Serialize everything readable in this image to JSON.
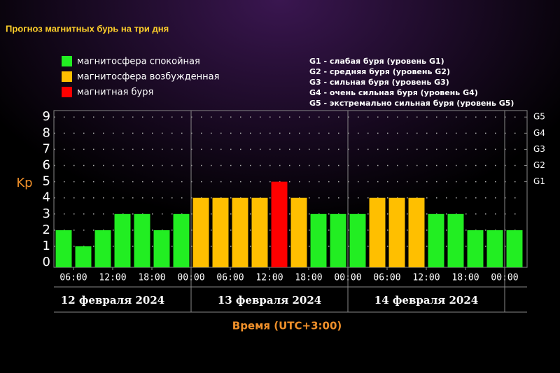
{
  "chart_data": {
    "type": "bar",
    "title": "Прогноз магнитных бурь на три дня",
    "legend": [
      {
        "name": "магнитосфера спокойная",
        "color": "#22ee22"
      },
      {
        "name": "магнитосфера возбужденная",
        "color": "#ffbf00"
      },
      {
        "name": "магнитная буря",
        "color": "#ff0000"
      }
    ],
    "notes": [
      "G1 - слабая буря (уровень G1)",
      "G2 - средняя буря (уровень G2)",
      "G3 - сильная буря (уровень G3)",
      "G4 - очень сильная буря (уровень G4)",
      "G5 - экстремально сильная буря (уровень G5)"
    ],
    "ylabel": "Kp",
    "xlabel": "Время (UTC+3:00)",
    "x": [
      4.5,
      7.5,
      10.5,
      13.5,
      16.5,
      19.5,
      22.5,
      25.5,
      28.5,
      31.5,
      34.5,
      37.5,
      40.5,
      43.5,
      46.5,
      49.5,
      52.5,
      55.5,
      58.5,
      61.5,
      64.5,
      67.5,
      70.5,
      73.5
    ],
    "values": [
      2,
      1,
      2,
      3,
      3,
      2,
      3,
      4,
      4,
      4,
      4,
      5,
      4,
      3,
      3,
      3,
      4,
      4,
      4,
      3,
      3,
      2,
      2,
      2
    ],
    "colors": [
      "#22ee22",
      "#22ee22",
      "#22ee22",
      "#22ee22",
      "#22ee22",
      "#22ee22",
      "#22ee22",
      "#ffbf00",
      "#ffbf00",
      "#ffbf00",
      "#ffbf00",
      "#ff0000",
      "#ffbf00",
      "#22ee22",
      "#22ee22",
      "#22ee22",
      "#ffbf00",
      "#ffbf00",
      "#ffbf00",
      "#22ee22",
      "#22ee22",
      "#22ee22",
      "#22ee22",
      "#22ee22"
    ],
    "xlim": [
      3,
      75
    ],
    "xticks": [
      {
        "value": 6,
        "label": "06:00"
      },
      {
        "value": 12,
        "label": "12:00"
      },
      {
        "value": 18,
        "label": "18:00"
      },
      {
        "value": 24,
        "label": "00:00"
      },
      {
        "value": 30,
        "label": "06:00"
      },
      {
        "value": 36,
        "label": "12:00"
      },
      {
        "value": 42,
        "label": "18:00"
      },
      {
        "value": 48,
        "label": "00:00"
      },
      {
        "value": 54,
        "label": "06:00"
      },
      {
        "value": 60,
        "label": "12:00"
      },
      {
        "value": 66,
        "label": "18:00"
      },
      {
        "value": 72,
        "label": "00:00"
      }
    ],
    "days": [
      "12 февраля 2024",
      "13 февраля 2024",
      "14 февраля 2024"
    ],
    "ylim": [
      -0.3,
      9.4
    ],
    "yticks": [
      0,
      1,
      2,
      3,
      4,
      5,
      6,
      7,
      8,
      9
    ],
    "y2lim": [
      -0.3,
      9.4
    ],
    "y2ticks": [
      {
        "value": 5,
        "label": "G1"
      },
      {
        "value": 6,
        "label": "G2"
      },
      {
        "value": 7,
        "label": "G3"
      },
      {
        "value": 8,
        "label": "G4"
      },
      {
        "value": 9,
        "label": "G5"
      }
    ],
    "grid": true
  }
}
